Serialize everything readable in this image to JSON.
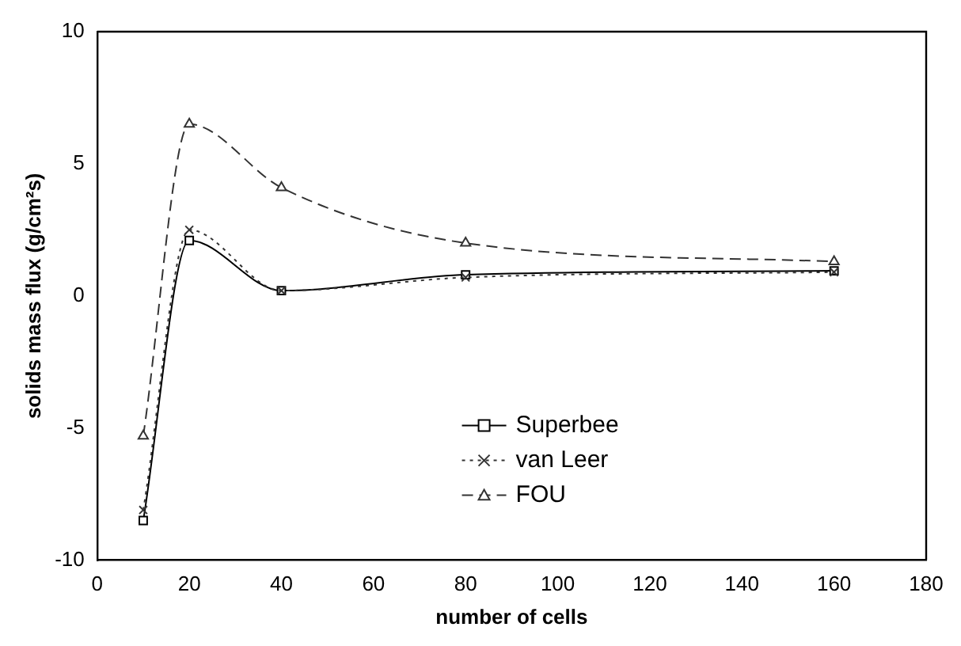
{
  "chart_data": {
    "type": "line",
    "xlabel": "number of cells",
    "ylabel": "solids mass flux (g/cm²s)",
    "x": [
      10,
      20,
      40,
      80,
      160
    ],
    "series": [
      {
        "name": "Superbee",
        "color": "#000000",
        "line_style": "solid",
        "marker": "square",
        "values": [
          -8.5,
          2.1,
          0.2,
          0.8,
          0.95
        ]
      },
      {
        "name": "van Leer",
        "color": "#333333",
        "line_style": "dotted",
        "marker": "cross",
        "values": [
          -8.1,
          2.5,
          0.2,
          0.7,
          0.9
        ]
      },
      {
        "name": "FOU",
        "color": "#333333",
        "line_style": "dashed",
        "marker": "triangle",
        "values": [
          -5.3,
          6.5,
          4.1,
          2.0,
          1.3
        ]
      }
    ],
    "xlim": [
      0,
      180
    ],
    "xticks": [
      0,
      20,
      40,
      60,
      80,
      100,
      120,
      140,
      160,
      180
    ],
    "ylim": [
      -10,
      10
    ],
    "yticks": [
      -10,
      -5,
      0,
      5,
      10
    ],
    "legend": "bottom"
  }
}
